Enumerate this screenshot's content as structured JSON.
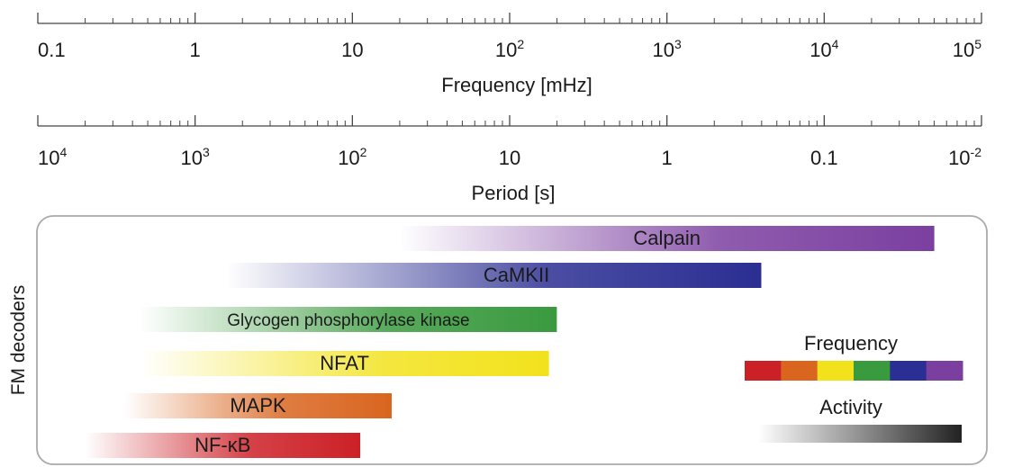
{
  "frequency_axis": {
    "title": "Frequency [mHz]",
    "ticks": [
      {
        "base": "0.1",
        "exp": ""
      },
      {
        "base": "1",
        "exp": ""
      },
      {
        "base": "10",
        "exp": ""
      },
      {
        "base": "10",
        "exp": "2"
      },
      {
        "base": "10",
        "exp": "3"
      },
      {
        "base": "10",
        "exp": "4"
      },
      {
        "base": "10",
        "exp": "5"
      }
    ]
  },
  "period_axis": {
    "title": "Period [s]",
    "ticks": [
      {
        "base": "10",
        "exp": "4"
      },
      {
        "base": "10",
        "exp": "3"
      },
      {
        "base": "10",
        "exp": "2"
      },
      {
        "base": "10",
        "exp": ""
      },
      {
        "base": "1",
        "exp": ""
      },
      {
        "base": "0.1",
        "exp": ""
      },
      {
        "base": "10",
        "exp": "-2"
      }
    ]
  },
  "panel": {
    "ylabel": "FM decoders",
    "decoders": [
      {
        "label": "Calpain",
        "color": "#7b3fa0",
        "log_start": 1.3,
        "log_end": 4.7
      },
      {
        "label": "CaMKII",
        "color": "#2b2e92",
        "log_start": 0.2,
        "log_end": 3.6
      },
      {
        "label": "Glycogen phosphorylase kinase",
        "color": "#3a9a3e",
        "log_start": -0.35,
        "log_end": 2.3
      },
      {
        "label": "NFAT",
        "color": "#f2e21c",
        "log_start": -0.35,
        "log_end": 2.25
      },
      {
        "label": "MAPK",
        "color": "#d9651f",
        "log_start": -0.45,
        "log_end": 1.25
      },
      {
        "label": "NF-κB",
        "color": "#cc2027",
        "log_start": -0.7,
        "log_end": 1.05
      }
    ],
    "legend": {
      "frequency_label": "Frequency",
      "frequency_colors": [
        "#cc2027",
        "#d9651f",
        "#f2e21c",
        "#3a9a3e",
        "#2b2e92",
        "#7b3fa0"
      ],
      "activity_label": "Activity"
    }
  }
}
